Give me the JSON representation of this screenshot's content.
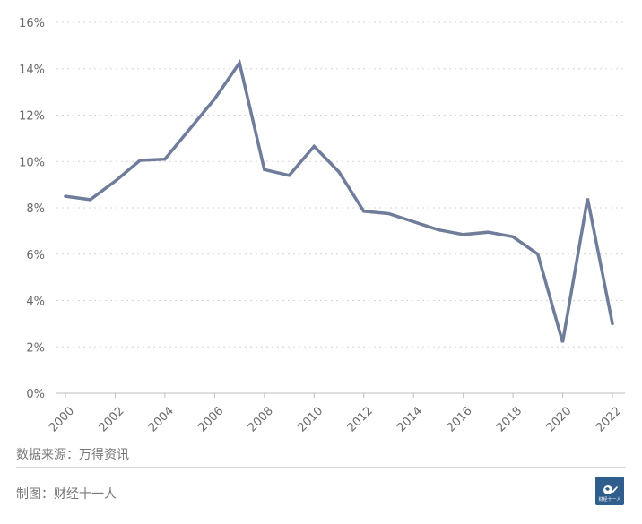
{
  "chart_data": {
    "type": "line",
    "x": [
      2000,
      2001,
      2002,
      2003,
      2004,
      2005,
      2006,
      2007,
      2008,
      2009,
      2010,
      2011,
      2012,
      2013,
      2014,
      2015,
      2016,
      2017,
      2018,
      2019,
      2020,
      2021,
      2022
    ],
    "series": [
      {
        "values": [
          8.5,
          8.35,
          9.15,
          10.05,
          10.1,
          11.4,
          12.7,
          14.25,
          9.65,
          9.4,
          10.65,
          9.55,
          7.85,
          7.75,
          7.4,
          7.05,
          6.85,
          6.95,
          6.75,
          6.0,
          2.2,
          8.4,
          3.0
        ]
      }
    ],
    "x_ticks": [
      "2000",
      "2002",
      "2004",
      "2006",
      "2008",
      "2010",
      "2012",
      "2014",
      "2016",
      "2018",
      "2020",
      "2022"
    ],
    "y_ticks": [
      "0%",
      "2%",
      "4%",
      "6%",
      "8%",
      "10%",
      "12%",
      "14%",
      "16%"
    ],
    "ylim": [
      0,
      16
    ],
    "xlim": [
      2000,
      2022
    ],
    "grid": true,
    "line_color": "#6f7d9a"
  },
  "footer": {
    "source": "数据来源：万得资讯",
    "credit": "制图：财经十一人"
  },
  "logo": {
    "text": "财经十一人",
    "color": "#2f5d8c"
  }
}
